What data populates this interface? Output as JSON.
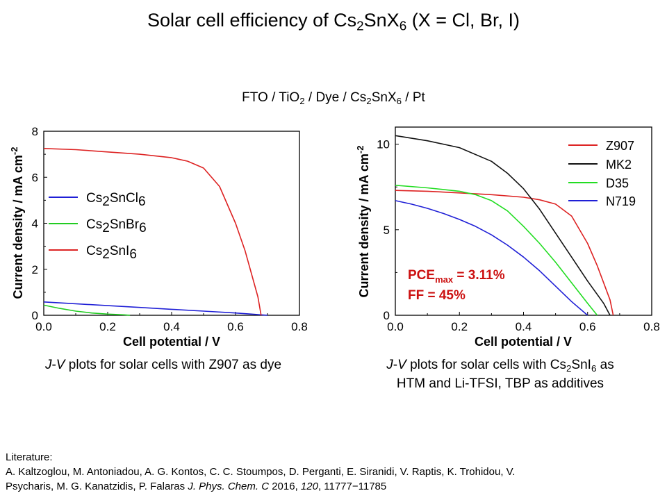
{
  "title": {
    "pre": "Solar cell efficiency of Cs",
    "s1": "2",
    "mid": "SnX",
    "s2": "6",
    "post": " (X = Cl, Br, I)"
  },
  "device": {
    "a": "FTO / TiO",
    "s1": "2",
    "b": " / Dye / Cs",
    "s2": "2",
    "c": "SnX",
    "s3": "6",
    "d": " / Pt"
  },
  "chart_data": [
    {
      "type": "line",
      "xlabel": "Cell potential / V",
      "ylabel": "Current density / mA cm",
      "ylabel_sup": "-2",
      "xlim": [
        0,
        0.8
      ],
      "ylim": [
        0,
        8
      ],
      "xticks": [
        "0.0",
        "0.2",
        "0.4",
        "0.6",
        "0.8"
      ],
      "yticks": [
        "0",
        "2",
        "4",
        "6",
        "8"
      ],
      "legend_position": "center-left",
      "series": [
        {
          "name": "Cs2SnCl6",
          "label": {
            "a": "Cs",
            "s": "2",
            "b": "SnCl",
            "t": "6"
          },
          "color": "#1f1fd6",
          "x": [
            0.0,
            0.1,
            0.2,
            0.3,
            0.4,
            0.5,
            0.6,
            0.65,
            0.7
          ],
          "y": [
            0.58,
            0.5,
            0.42,
            0.34,
            0.26,
            0.18,
            0.1,
            0.05,
            0.0
          ]
        },
        {
          "name": "Cs2SnBr6",
          "label": {
            "a": "Cs",
            "s": "2",
            "b": "SnBr",
            "t": "6"
          },
          "color": "#22cc22",
          "x": [
            0.0,
            0.05,
            0.1,
            0.15,
            0.2,
            0.25,
            0.27
          ],
          "y": [
            0.44,
            0.3,
            0.18,
            0.1,
            0.05,
            0.02,
            0.0
          ]
        },
        {
          "name": "Cs2SnI6",
          "label": {
            "a": "Cs",
            "s": "2",
            "b": "SnI",
            "t": "6"
          },
          "color": "#dd2222",
          "x": [
            0.0,
            0.1,
            0.2,
            0.3,
            0.4,
            0.45,
            0.5,
            0.55,
            0.6,
            0.63,
            0.65,
            0.67,
            0.68
          ],
          "y": [
            7.25,
            7.2,
            7.1,
            7.0,
            6.85,
            6.7,
            6.4,
            5.6,
            4.0,
            2.8,
            1.8,
            0.8,
            0.0
          ]
        }
      ]
    },
    {
      "type": "line",
      "xlabel": "Cell potential / V",
      "ylabel": "Current density / mA cm",
      "ylabel_sup": "-2",
      "xlim": [
        0,
        0.8
      ],
      "ylim": [
        0,
        11
      ],
      "xticks": [
        "0.0",
        "0.2",
        "0.4",
        "0.6",
        "0.8"
      ],
      "yticks": [
        "0",
        "5",
        "10"
      ],
      "yticks_at": [
        0,
        5,
        10
      ],
      "legend_position": "top-right",
      "annotations": [
        {
          "pre": "PCE",
          "sub": "max",
          "post": " = 3.11%",
          "color": "#cc1111"
        },
        {
          "pre": "FF = 45%",
          "sub": "",
          "post": "",
          "color": "#cc1111"
        }
      ],
      "series": [
        {
          "name": "Z907",
          "color": "#dd2222",
          "x": [
            0.0,
            0.1,
            0.2,
            0.3,
            0.4,
            0.45,
            0.5,
            0.55,
            0.6,
            0.63,
            0.65,
            0.67,
            0.68
          ],
          "y": [
            7.3,
            7.25,
            7.15,
            7.05,
            6.9,
            6.75,
            6.5,
            5.8,
            4.2,
            2.9,
            1.9,
            0.9,
            0.0
          ]
        },
        {
          "name": "MK2",
          "color": "#111111",
          "x": [
            0.0,
            0.1,
            0.2,
            0.3,
            0.35,
            0.4,
            0.45,
            0.5,
            0.55,
            0.6,
            0.65,
            0.67
          ],
          "y": [
            10.5,
            10.2,
            9.8,
            9.0,
            8.3,
            7.4,
            6.2,
            4.8,
            3.4,
            2.0,
            0.7,
            0.0
          ]
        },
        {
          "name": "D35",
          "color": "#22dd22",
          "x": [
            0.0,
            0.1,
            0.2,
            0.25,
            0.3,
            0.35,
            0.4,
            0.45,
            0.5,
            0.55,
            0.6,
            0.63
          ],
          "y": [
            7.6,
            7.45,
            7.25,
            7.05,
            6.7,
            6.1,
            5.2,
            4.2,
            3.1,
            1.9,
            0.7,
            0.0
          ]
        },
        {
          "name": "N719",
          "color": "#1f1fd6",
          "x": [
            0.0,
            0.05,
            0.1,
            0.15,
            0.2,
            0.25,
            0.3,
            0.35,
            0.4,
            0.45,
            0.5,
            0.55,
            0.6
          ],
          "y": [
            6.7,
            6.5,
            6.25,
            5.95,
            5.6,
            5.2,
            4.7,
            4.1,
            3.4,
            2.6,
            1.7,
            0.8,
            0.0
          ]
        }
      ]
    }
  ],
  "caption_left": {
    "i1": "J",
    "dash": "-",
    "i2": "V",
    "rest": " plots for solar cells with Z907 as dye"
  },
  "caption_right": {
    "i1": "J",
    "dash": "-",
    "i2": "V",
    "rest1": " plots for solar cells with Cs",
    "s1": "2",
    "rest2": "SnI",
    "s2": "6",
    "rest3": " as",
    "line2": "HTM and Li-TFSI, TBP as additives"
  },
  "literature": {
    "heading": "Literature:",
    "authors1": "A. Kaltzoglou, M. Antoniadou, A. G. Kontos, C. C. Stoumpos, D. Perganti, E. Siranidi, V. Raptis, K. Trohidou, V.",
    "authors2": "Psycharis, M. G. Kanatzidis, P. Falaras ",
    "journal": "J. Phys. Chem. C",
    "year": " 2016, ",
    "volume": "120",
    "pages": ", 11777−11785"
  }
}
